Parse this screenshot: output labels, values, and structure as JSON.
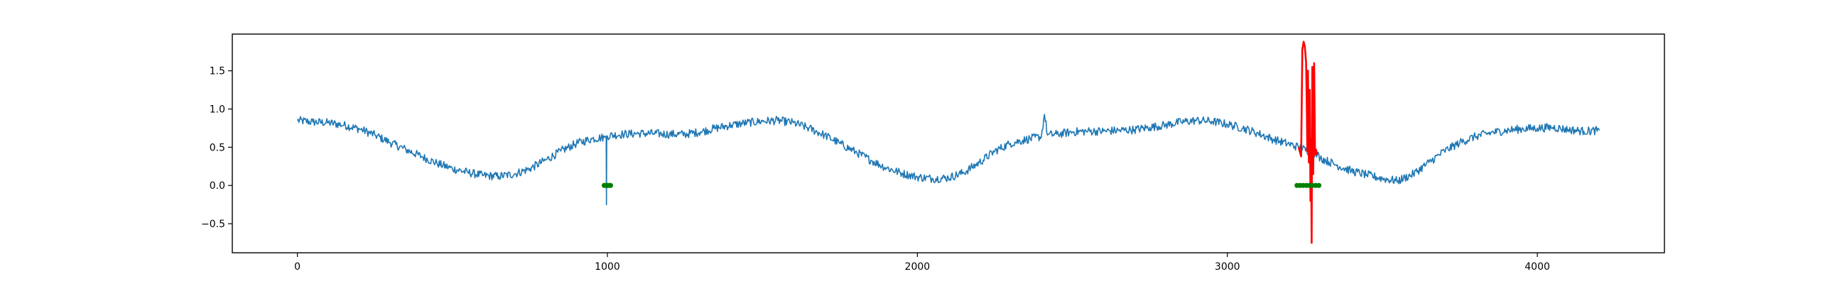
{
  "chart_data": {
    "type": "line",
    "title": "",
    "xlabel": "",
    "ylabel": "",
    "xlim": [
      -210,
      4410
    ],
    "ylim": [
      -0.88,
      1.98
    ],
    "grid": false,
    "legend": "none",
    "x_ticks": [
      {
        "value": 0,
        "label": "0"
      },
      {
        "value": 1000,
        "label": "1000"
      },
      {
        "value": 2000,
        "label": "2000"
      },
      {
        "value": 3000,
        "label": "3000"
      },
      {
        "value": 4000,
        "label": "4000"
      }
    ],
    "y_ticks": [
      {
        "value": -0.5,
        "label": "−0.5"
      },
      {
        "value": 0.0,
        "label": "0.0"
      },
      {
        "value": 0.5,
        "label": "0.5"
      },
      {
        "value": 1.0,
        "label": "1.0"
      },
      {
        "value": 1.5,
        "label": "1.5"
      }
    ],
    "series": [
      {
        "color": "#1f77b4",
        "style": "line",
        "points": [
          [
            0,
            0.85
          ],
          [
            50,
            0.83
          ],
          [
            100,
            0.82
          ],
          [
            150,
            0.79
          ],
          [
            200,
            0.74
          ],
          [
            250,
            0.66
          ],
          [
            300,
            0.56
          ],
          [
            350,
            0.47
          ],
          [
            400,
            0.38
          ],
          [
            450,
            0.29
          ],
          [
            500,
            0.22
          ],
          [
            550,
            0.17
          ],
          [
            600,
            0.13
          ],
          [
            650,
            0.12
          ],
          [
            700,
            0.15
          ],
          [
            750,
            0.22
          ],
          [
            800,
            0.33
          ],
          [
            850,
            0.45
          ],
          [
            900,
            0.55
          ],
          [
            950,
            0.61
          ],
          [
            990,
            0.63
          ],
          [
            996,
            0.62
          ],
          [
            997,
            -0.25
          ],
          [
            998,
            0.65
          ],
          [
            1050,
            0.67
          ],
          [
            1100,
            0.68
          ],
          [
            1150,
            0.68
          ],
          [
            1200,
            0.67
          ],
          [
            1250,
            0.67
          ],
          [
            1300,
            0.7
          ],
          [
            1350,
            0.75
          ],
          [
            1400,
            0.79
          ],
          [
            1450,
            0.82
          ],
          [
            1500,
            0.84
          ],
          [
            1550,
            0.85
          ],
          [
            1600,
            0.82
          ],
          [
            1650,
            0.75
          ],
          [
            1700,
            0.66
          ],
          [
            1750,
            0.55
          ],
          [
            1800,
            0.44
          ],
          [
            1850,
            0.33
          ],
          [
            1900,
            0.23
          ],
          [
            1950,
            0.16
          ],
          [
            2000,
            0.11
          ],
          [
            2050,
            0.09
          ],
          [
            2100,
            0.1
          ],
          [
            2150,
            0.17
          ],
          [
            2200,
            0.3
          ],
          [
            2250,
            0.45
          ],
          [
            2300,
            0.55
          ],
          [
            2350,
            0.6
          ],
          [
            2400,
            0.64
          ],
          [
            2410,
            0.93
          ],
          [
            2420,
            0.66
          ],
          [
            2450,
            0.67
          ],
          [
            2500,
            0.7
          ],
          [
            2550,
            0.71
          ],
          [
            2600,
            0.71
          ],
          [
            2650,
            0.72
          ],
          [
            2700,
            0.73
          ],
          [
            2750,
            0.76
          ],
          [
            2800,
            0.79
          ],
          [
            2850,
            0.83
          ],
          [
            2900,
            0.85
          ],
          [
            2950,
            0.84
          ],
          [
            3000,
            0.8
          ],
          [
            3050,
            0.75
          ],
          [
            3100,
            0.68
          ],
          [
            3150,
            0.6
          ],
          [
            3200,
            0.54
          ],
          [
            3230,
            0.5
          ],
          [
            3290,
            0.4
          ],
          [
            3300,
            0.36
          ],
          [
            3350,
            0.27
          ],
          [
            3400,
            0.19
          ],
          [
            3450,
            0.14
          ],
          [
            3500,
            0.09
          ],
          [
            3550,
            0.06
          ],
          [
            3600,
            0.15
          ],
          [
            3650,
            0.3
          ],
          [
            3700,
            0.45
          ],
          [
            3750,
            0.56
          ],
          [
            3800,
            0.64
          ],
          [
            3850,
            0.69
          ],
          [
            3900,
            0.72
          ],
          [
            3950,
            0.74
          ],
          [
            4000,
            0.75
          ],
          [
            4050,
            0.76
          ],
          [
            4100,
            0.73
          ],
          [
            4150,
            0.71
          ],
          [
            4200,
            0.72
          ]
        ]
      },
      {
        "color": "#ff0000",
        "style": "line",
        "points": [
          [
            3230,
            0.5
          ],
          [
            3238,
            0.38
          ],
          [
            3242,
            1.78
          ],
          [
            3246,
            1.88
          ],
          [
            3250,
            1.82
          ],
          [
            3254,
            1.6
          ],
          [
            3256,
            1.15
          ],
          [
            3258,
            0.45
          ],
          [
            3260,
            1.5
          ],
          [
            3263,
            0.3
          ],
          [
            3266,
            1.25
          ],
          [
            3268,
            -0.2
          ],
          [
            3270,
            0.6
          ],
          [
            3272,
            -0.75
          ],
          [
            3274,
            1.55
          ],
          [
            3277,
            0.15
          ],
          [
            3280,
            1.6
          ],
          [
            3283,
            0.4
          ],
          [
            3286,
            0.47
          ],
          [
            3290,
            0.4
          ]
        ]
      },
      {
        "color": "#008000",
        "style": "markers",
        "points": [
          [
            990,
            0.0
          ],
          [
            995,
            0.0
          ],
          [
            1000,
            0.0
          ],
          [
            1005,
            0.0
          ],
          [
            1010,
            0.0
          ],
          [
            3225,
            0.0
          ],
          [
            3235,
            0.0
          ],
          [
            3245,
            0.0
          ],
          [
            3255,
            0.0
          ],
          [
            3265,
            0.0
          ],
          [
            3275,
            0.0
          ],
          [
            3285,
            0.0
          ],
          [
            3295,
            0.0
          ]
        ]
      }
    ]
  }
}
